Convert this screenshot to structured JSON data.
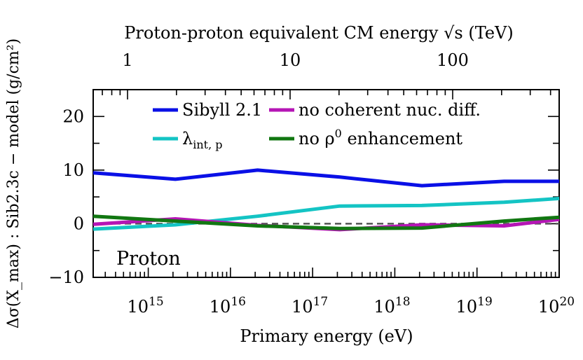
{
  "chart_data": {
    "type": "line",
    "panel_label": "Proton",
    "xlabel": "Primary energy (eV)",
    "top_xlabel": "Proton-proton equivalent CM energy √s (TeV)",
    "ylabel": "Δσ(X_max) : Sib2.3c − model (g/cm²)",
    "xscale": "log",
    "xlim_log10": [
      14.33,
      20.0
    ],
    "ylim": [
      -10,
      25
    ],
    "yticks": [
      -10,
      0,
      10,
      20
    ],
    "ytick_labels": [
      "−10",
      "0",
      "10",
      "20"
    ],
    "xticks_log10": [
      15,
      16,
      17,
      18,
      19,
      20
    ],
    "xtick_base": "10",
    "xtick_exponents": [
      "15",
      "16",
      "17",
      "18",
      "19",
      "20"
    ],
    "top_ticks_tev": [
      1,
      10,
      100
    ],
    "top_tick_labels": [
      "1",
      "10",
      "100"
    ],
    "reference_line": {
      "y": 0,
      "style": "dashed",
      "color": "#555555"
    },
    "legend": {
      "placement": "top",
      "entries": [
        {
          "label": "Sibyll 2.1",
          "color": "#0a10e6"
        },
        {
          "label": "no coherent nuc. diff.",
          "color": "#b515b5"
        },
        {
          "label_main": "λ",
          "label_sub": "int, p",
          "color": "#14c4c4"
        },
        {
          "label_main": "no ρ",
          "label_sup": "0",
          "label_rest": " enhancement",
          "color": "#117711"
        }
      ]
    },
    "series": [
      {
        "name": "Sibyll 2.1",
        "color": "#0a10e6",
        "x_log10": [
          14.33,
          15.33,
          16.33,
          17.33,
          18.33,
          19.33,
          20.0
        ],
        "y": [
          9.5,
          8.3,
          10.0,
          8.7,
          7.1,
          7.9,
          7.9
        ]
      },
      {
        "name": "λint, p",
        "color": "#14c4c4",
        "x_log10": [
          14.33,
          15.33,
          16.33,
          17.33,
          18.33,
          19.33,
          20.0
        ],
        "y": [
          -1.0,
          -0.2,
          1.4,
          3.3,
          3.4,
          4.0,
          4.7
        ]
      },
      {
        "name": "no coherent nuc. diff.",
        "color": "#b515b5",
        "x_log10": [
          14.33,
          15.33,
          16.33,
          17.33,
          18.33,
          19.33,
          20.0
        ],
        "y": [
          -0.1,
          0.9,
          -0.3,
          -1.1,
          -0.2,
          -0.4,
          0.8
        ]
      },
      {
        "name": "no ρ0 enhancement",
        "color": "#117711",
        "x_log10": [
          14.33,
          15.33,
          16.33,
          17.33,
          18.33,
          19.33,
          20.0
        ],
        "y": [
          1.4,
          0.5,
          -0.4,
          -0.9,
          -0.8,
          0.5,
          1.2
        ]
      }
    ]
  }
}
